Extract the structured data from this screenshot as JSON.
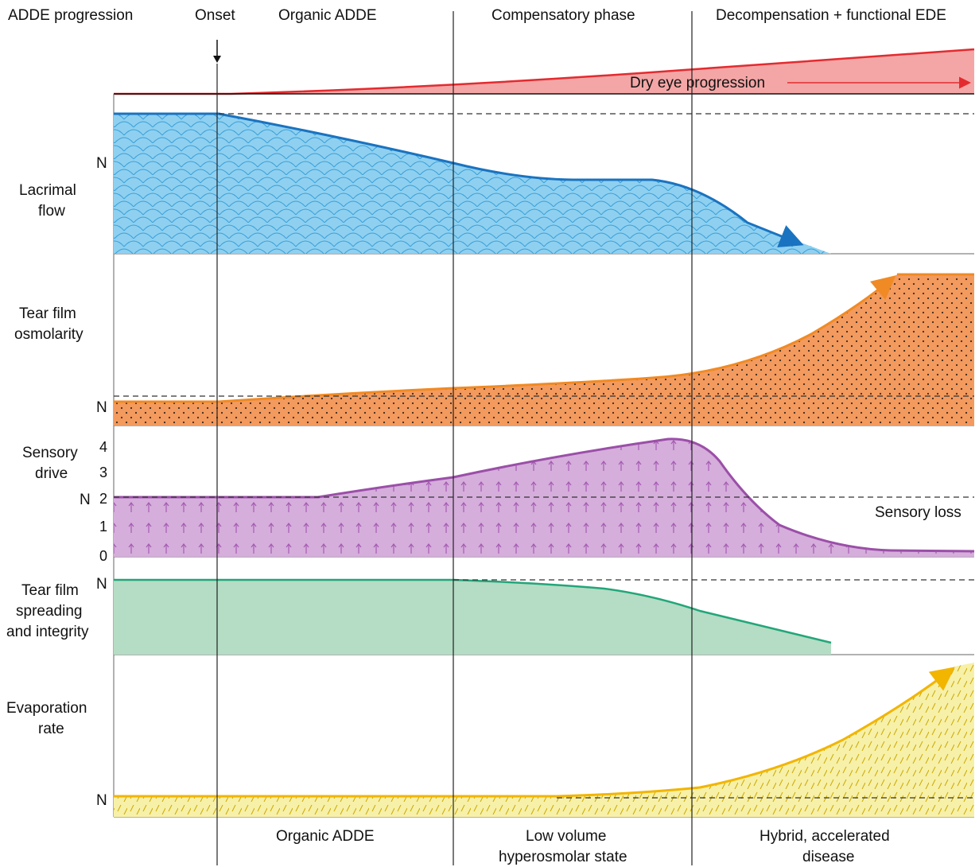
{
  "header": {
    "title": "ADDE progression",
    "onset": "Onset",
    "phase1": "Organic ADDE",
    "phase2": "Compensatory phase",
    "phase3": "Decompensation + functional EDE"
  },
  "dry_eye": {
    "label": "Dry eye progression",
    "color": "#e32b2f",
    "fill": "#f4a6a6"
  },
  "rows": {
    "lacrimal": {
      "label_line1": "Lacrimal",
      "label_line2": "flow",
      "normal": "N",
      "color": "#1a73c0",
      "fill": "#8fd0f0"
    },
    "osmolarity": {
      "label_line1": "Tear film",
      "label_line2": "osmolarity",
      "normal": "N",
      "color": "#f08a24",
      "fill": "#f39a5e"
    },
    "sensory": {
      "label_line1": "Sensory",
      "label_line2": "drive",
      "normal": "N",
      "ticks": [
        "4",
        "3",
        "2",
        "1",
        "0"
      ],
      "annotation": "Sensory loss",
      "color": "#9b4fa8",
      "fill": "#d5aedb"
    },
    "spreading": {
      "label_line1": "Tear film",
      "label_line2": "spreading",
      "label_line3": "and integrity",
      "normal": "N",
      "color": "#22a67a",
      "fill": "#b5dcc4"
    },
    "evaporation": {
      "label_line1": "Evaporation",
      "label_line2": "rate",
      "normal": "N",
      "color": "#f2b500",
      "fill": "#f7f0a8"
    }
  },
  "footer": {
    "col1": "Organic ADDE",
    "col2_line1": "Low volume",
    "col2_line2": "hyperosmolar state",
    "col3_line1": "Hybrid, accelerated",
    "col3_line2": "disease"
  }
}
